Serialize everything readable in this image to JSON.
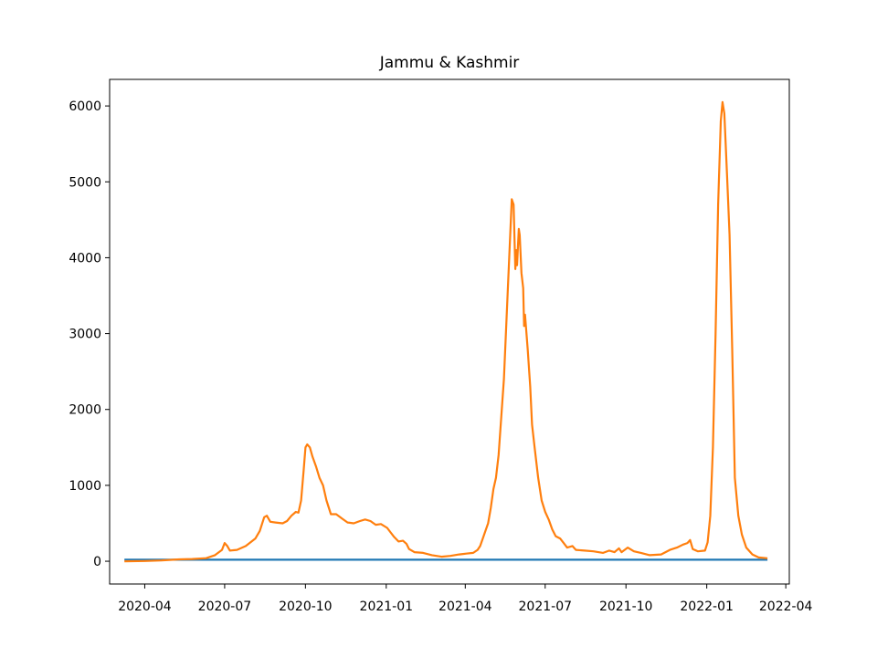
{
  "chart_data": {
    "type": "line",
    "title": "Jammu & Kashmir",
    "xlabel": "",
    "ylabel": "",
    "x_ticks": [
      "2020-04",
      "2020-07",
      "2020-10",
      "2021-01",
      "2021-04",
      "2021-07",
      "2021-10",
      "2022-01",
      "2022-04"
    ],
    "y_ticks": [
      0,
      1000,
      2000,
      3000,
      4000,
      5000,
      6000
    ],
    "xlim": [
      "2020-02-21",
      "2022-04-05"
    ],
    "ylim": [
      -300,
      6350
    ],
    "grid": false,
    "legend": "none",
    "series": [
      {
        "color": "#1f77b4",
        "points": [
          [
            "2020-03-10",
            20
          ],
          [
            "2022-03-10",
            20
          ]
        ]
      },
      {
        "color": "#ff7f0e",
        "points": [
          [
            "2020-03-10",
            0
          ],
          [
            "2020-04-01",
            3
          ],
          [
            "2020-04-20",
            10
          ],
          [
            "2020-05-10",
            25
          ],
          [
            "2020-05-25",
            30
          ],
          [
            "2020-06-10",
            40
          ],
          [
            "2020-06-20",
            80
          ],
          [
            "2020-06-28",
            150
          ],
          [
            "2020-07-01",
            240
          ],
          [
            "2020-07-04",
            200
          ],
          [
            "2020-07-07",
            140
          ],
          [
            "2020-07-15",
            150
          ],
          [
            "2020-07-25",
            200
          ],
          [
            "2020-08-05",
            300
          ],
          [
            "2020-08-10",
            400
          ],
          [
            "2020-08-15",
            580
          ],
          [
            "2020-08-18",
            600
          ],
          [
            "2020-08-22",
            520
          ],
          [
            "2020-08-28",
            510
          ],
          [
            "2020-09-05",
            500
          ],
          [
            "2020-09-10",
            530
          ],
          [
            "2020-09-15",
            600
          ],
          [
            "2020-09-20",
            650
          ],
          [
            "2020-09-23",
            640
          ],
          [
            "2020-09-26",
            800
          ],
          [
            "2020-09-29",
            1200
          ],
          [
            "2020-10-01",
            1500
          ],
          [
            "2020-10-03",
            1540
          ],
          [
            "2020-10-06",
            1500
          ],
          [
            "2020-10-09",
            1380
          ],
          [
            "2020-10-13",
            1250
          ],
          [
            "2020-10-17",
            1100
          ],
          [
            "2020-10-21",
            1000
          ],
          [
            "2020-10-25",
            800
          ],
          [
            "2020-10-30",
            620
          ],
          [
            "2020-11-05",
            620
          ],
          [
            "2020-11-12",
            560
          ],
          [
            "2020-11-18",
            510
          ],
          [
            "2020-11-25",
            500
          ],
          [
            "2020-12-02",
            530
          ],
          [
            "2020-12-08",
            550
          ],
          [
            "2020-12-14",
            530
          ],
          [
            "2020-12-20",
            480
          ],
          [
            "2020-12-26",
            490
          ],
          [
            "2021-01-02",
            440
          ],
          [
            "2021-01-06",
            380
          ],
          [
            "2021-01-10",
            320
          ],
          [
            "2021-01-15",
            260
          ],
          [
            "2021-01-20",
            270
          ],
          [
            "2021-01-24",
            230
          ],
          [
            "2021-01-27",
            160
          ],
          [
            "2021-02-02",
            120
          ],
          [
            "2021-02-12",
            110
          ],
          [
            "2021-02-22",
            80
          ],
          [
            "2021-03-05",
            60
          ],
          [
            "2021-03-15",
            70
          ],
          [
            "2021-03-25",
            90
          ],
          [
            "2021-04-02",
            100
          ],
          [
            "2021-04-10",
            110
          ],
          [
            "2021-04-15",
            150
          ],
          [
            "2021-04-18",
            200
          ],
          [
            "2021-04-21",
            300
          ],
          [
            "2021-04-24",
            400
          ],
          [
            "2021-04-27",
            500
          ],
          [
            "2021-04-30",
            700
          ],
          [
            "2021-05-03",
            950
          ],
          [
            "2021-05-06",
            1100
          ],
          [
            "2021-05-09",
            1400
          ],
          [
            "2021-05-12",
            1900
          ],
          [
            "2021-05-15",
            2400
          ],
          [
            "2021-05-18",
            3200
          ],
          [
            "2021-05-21",
            4000
          ],
          [
            "2021-05-24",
            4770
          ],
          [
            "2021-05-26",
            4700
          ],
          [
            "2021-05-28",
            3850
          ],
          [
            "2021-05-29",
            4100
          ],
          [
            "2021-05-30",
            3900
          ],
          [
            "2021-06-01",
            4380
          ],
          [
            "2021-06-02",
            4300
          ],
          [
            "2021-06-04",
            3800
          ],
          [
            "2021-06-06",
            3600
          ],
          [
            "2021-06-07",
            3100
          ],
          [
            "2021-06-08",
            3250
          ],
          [
            "2021-06-11",
            2800
          ],
          [
            "2021-06-14",
            2300
          ],
          [
            "2021-06-16",
            1800
          ],
          [
            "2021-06-19",
            1500
          ],
          [
            "2021-06-23",
            1100
          ],
          [
            "2021-06-27",
            800
          ],
          [
            "2021-07-01",
            650
          ],
          [
            "2021-07-05",
            550
          ],
          [
            "2021-07-09",
            420
          ],
          [
            "2021-07-13",
            330
          ],
          [
            "2021-07-18",
            300
          ],
          [
            "2021-07-22",
            240
          ],
          [
            "2021-07-26",
            180
          ],
          [
            "2021-08-01",
            200
          ],
          [
            "2021-08-05",
            150
          ],
          [
            "2021-08-15",
            140
          ],
          [
            "2021-08-25",
            130
          ],
          [
            "2021-09-05",
            110
          ],
          [
            "2021-09-12",
            140
          ],
          [
            "2021-09-18",
            120
          ],
          [
            "2021-09-23",
            170
          ],
          [
            "2021-09-26",
            120
          ],
          [
            "2021-10-03",
            180
          ],
          [
            "2021-10-10",
            130
          ],
          [
            "2021-10-18",
            110
          ],
          [
            "2021-10-28",
            80
          ],
          [
            "2021-11-10",
            90
          ],
          [
            "2021-11-20",
            150
          ],
          [
            "2021-11-28",
            180
          ],
          [
            "2021-12-05",
            220
          ],
          [
            "2021-12-10",
            240
          ],
          [
            "2021-12-13",
            280
          ],
          [
            "2021-12-16",
            160
          ],
          [
            "2021-12-22",
            130
          ],
          [
            "2021-12-30",
            140
          ],
          [
            "2022-01-02",
            250
          ],
          [
            "2022-01-05",
            600
          ],
          [
            "2022-01-08",
            1500
          ],
          [
            "2022-01-11",
            3000
          ],
          [
            "2022-01-14",
            4700
          ],
          [
            "2022-01-17",
            5800
          ],
          [
            "2022-01-19",
            6050
          ],
          [
            "2022-01-21",
            5900
          ],
          [
            "2022-01-24",
            5100
          ],
          [
            "2022-01-27",
            4300
          ],
          [
            "2022-01-30",
            2800
          ],
          [
            "2022-02-02",
            1100
          ],
          [
            "2022-02-06",
            600
          ],
          [
            "2022-02-10",
            350
          ],
          [
            "2022-02-15",
            180
          ],
          [
            "2022-02-22",
            90
          ],
          [
            "2022-03-01",
            50
          ],
          [
            "2022-03-10",
            40
          ]
        ]
      }
    ]
  }
}
